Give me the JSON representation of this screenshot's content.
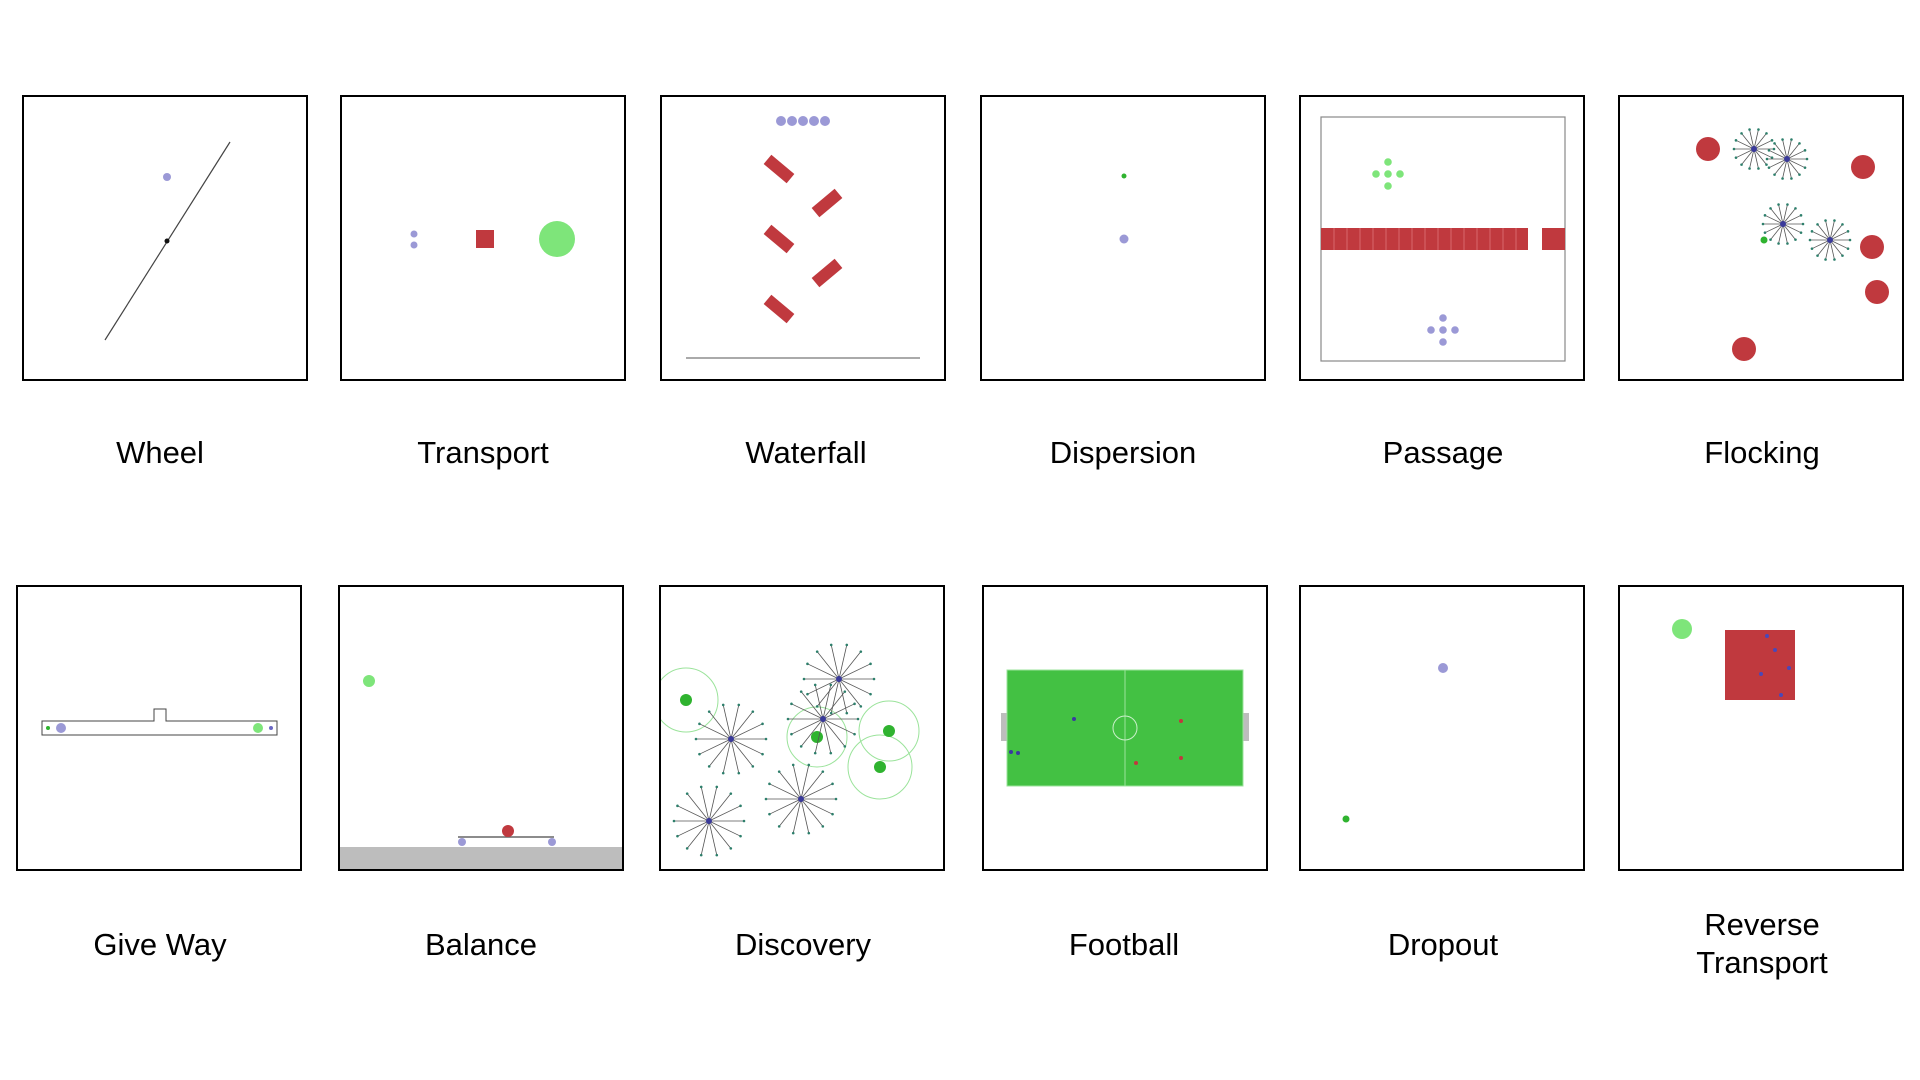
{
  "colors": {
    "agent": "#9b99d6",
    "goal": "#7ee57a",
    "obstacle": "#c0393e",
    "field": "#43c143",
    "ground": "#bdbdbd",
    "sensor": "#3a3a7a"
  },
  "scenarios": {
    "wheel": "Wheel",
    "transport": "Transport",
    "waterfall": "Waterfall",
    "dispersion": "Dispersion",
    "passage": "Passage",
    "flocking": "Flocking",
    "give_way": "Give Way",
    "balance": "Balance",
    "discovery": "Discovery",
    "football": "Football",
    "dropout": "Dropout",
    "reverse_transport_line1": "Reverse",
    "reverse_transport_line2": "Transport"
  }
}
